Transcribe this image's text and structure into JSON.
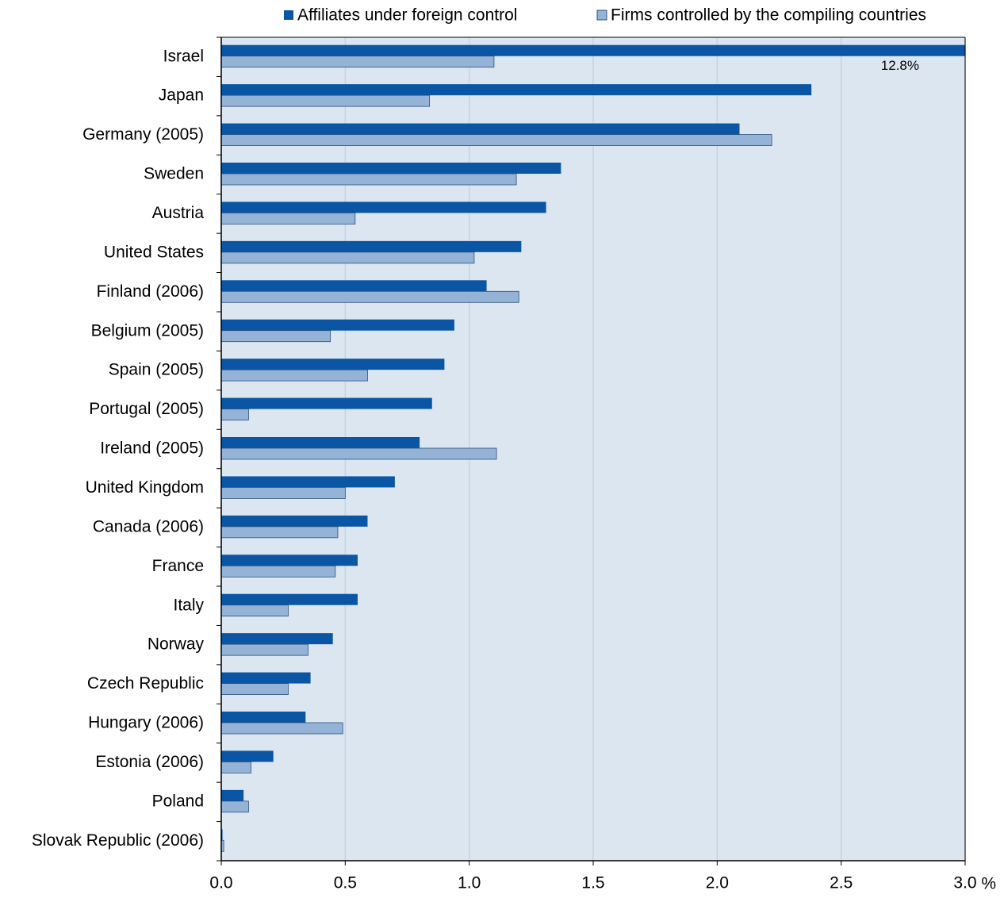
{
  "chart_data": {
    "type": "hbar",
    "xlabel": "%",
    "categories": [
      "Israel",
      "Japan",
      "Germany (2005)",
      "Sweden",
      "Austria",
      "United States",
      "Finland (2006)",
      "Belgium (2005)",
      "Spain (2005)",
      "Portugal (2005)",
      "Ireland (2005)",
      "United Kingdom",
      "Canada (2006)",
      "France",
      "Italy",
      "Norway",
      "Czech Republic",
      "Hungary (2006)",
      "Estonia (2006)",
      "Poland",
      "Slovak Republic (2006)"
    ],
    "series": [
      {
        "name": "Affiliates under foreign control",
        "color": "#0a55a4",
        "values": [
          12.8,
          2.38,
          2.09,
          1.37,
          1.31,
          1.21,
          1.07,
          0.94,
          0.9,
          0.85,
          0.8,
          0.7,
          0.59,
          0.55,
          0.55,
          0.45,
          0.36,
          0.34,
          0.21,
          0.09,
          0.005
        ],
        "value_labels": [
          "12.8%",
          null,
          null,
          null,
          null,
          null,
          null,
          null,
          null,
          null,
          null,
          null,
          null,
          null,
          null,
          null,
          null,
          null,
          null,
          null,
          null
        ]
      },
      {
        "name": "Firms controlled by the compiling countries",
        "color": "#95b3d7",
        "values": [
          1.1,
          0.84,
          2.22,
          1.19,
          0.54,
          1.02,
          1.2,
          0.44,
          0.59,
          0.11,
          1.11,
          0.5,
          0.47,
          0.46,
          0.27,
          0.35,
          0.27,
          0.49,
          0.12,
          0.11,
          0.01
        ]
      }
    ],
    "xlim": [
      0,
      3
    ],
    "xticks": [
      {
        "value": 0,
        "label": "0.0"
      },
      0.5,
      {
        "value": 1,
        "label": "1.0"
      },
      1.5,
      {
        "value": 2,
        "label": "2.0"
      },
      2.5,
      {
        "value": 3,
        "label": "3.0"
      }
    ],
    "grid": true,
    "legend": "top",
    "background": "#dce6f1"
  }
}
